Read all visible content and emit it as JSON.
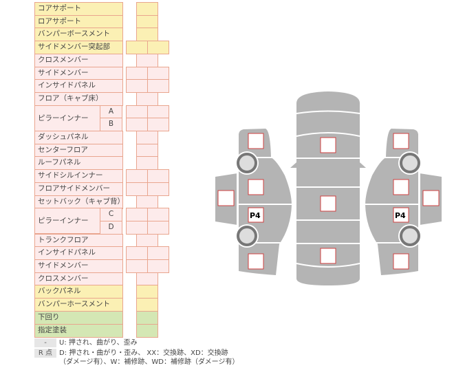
{
  "rows": [
    {
      "label": "コアサポート",
      "kind": "yellow",
      "cells": 1
    },
    {
      "label": "ロアサポート",
      "kind": "yellow",
      "cells": 1
    },
    {
      "label": "バンパーボースメント",
      "kind": "yellow",
      "cells": 1
    },
    {
      "label": "サイドメンバー突起部",
      "kind": "yellow",
      "cells": 2
    },
    {
      "label": "クロスメンバー",
      "kind": "pink",
      "cells": 1
    },
    {
      "label": "サイドメンバー",
      "kind": "pink",
      "cells": 2
    },
    {
      "label": "インサイドパネル",
      "kind": "pink",
      "cells": 2
    },
    {
      "label": "フロア（キャブ床）",
      "kind": "pink",
      "cells": 1
    },
    {
      "label": "ピラーインナー",
      "sub": "A",
      "kind": "pink",
      "cells": 2,
      "span": 2
    },
    {
      "label": "",
      "sub": "B",
      "kind": "pink",
      "cells": 2,
      "cont": true
    },
    {
      "label": "ダッシュパネル",
      "kind": "pink",
      "cells": 1
    },
    {
      "label": "センターフロア",
      "kind": "pink",
      "cells": 1
    },
    {
      "label": "ルーフパネル",
      "kind": "pink",
      "cells": 1
    },
    {
      "label": "サイドシルインナー",
      "kind": "pink",
      "cells": 2
    },
    {
      "label": "フロアサイドメンバー",
      "kind": "pink",
      "cells": 2
    },
    {
      "label": "セットバック（キャブ背）",
      "kind": "pink",
      "cells": 1
    },
    {
      "label": "ピラーインナー",
      "sub": "C",
      "kind": "pink",
      "cells": 2,
      "span": 2
    },
    {
      "label": "",
      "sub": "D",
      "kind": "pink",
      "cells": 2,
      "cont": true
    },
    {
      "label": "トランクフロア",
      "kind": "pink",
      "cells": 1
    },
    {
      "label": "インサイドパネル",
      "kind": "pink",
      "cells": 2
    },
    {
      "label": "サイドメンバー",
      "kind": "pink",
      "cells": 2
    },
    {
      "label": "クロスメンバー",
      "kind": "pink",
      "cells": 1
    },
    {
      "label": "バックパネル",
      "kind": "yellow",
      "cells": 1
    },
    {
      "label": "バンパーホースメント",
      "kind": "yellow",
      "cells": 1
    },
    {
      "label": "下回り",
      "kind": "green",
      "cells": 1
    },
    {
      "label": "指定塗装",
      "kind": "green",
      "cells": 1
    }
  ],
  "legend": {
    "key1": "-",
    "text1": "U: 押され、曲がり、歪み",
    "key2": "R 点",
    "text2": "D: 押され・曲がり・歪み、 XX：交換跡、XD：交換跡",
    "text3": "（ダメージ有）、W：補修跡、WD：補修跡（ダメージ有）"
  },
  "diagram": {
    "left_label": "P4",
    "right_label": "P4"
  },
  "colors": {
    "body": "#b4b4b4",
    "marker_border": "#d04040",
    "yellow": "#fbf0b4",
    "pink": "#fdebeb",
    "green": "#d4e7b4"
  }
}
